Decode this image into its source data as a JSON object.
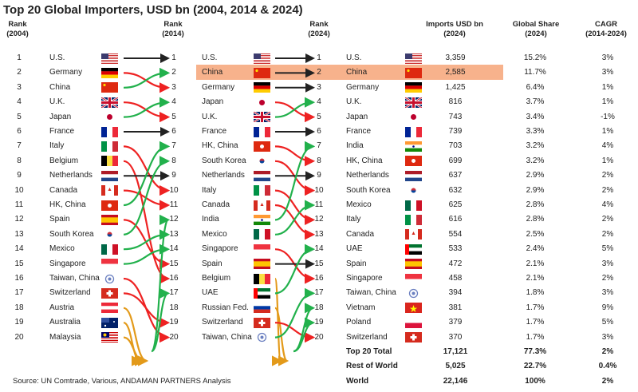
{
  "title": "Top 20 Global Importers, USD bn (2004, 2014 & 2024)",
  "headers": {
    "rank2004": [
      "Rank",
      "(2004)"
    ],
    "rank2014": [
      "Rank",
      "(2014)"
    ],
    "rank2024": [
      "Rank",
      "(2024)"
    ],
    "imports": [
      "Imports USD bn",
      "(2024)"
    ],
    "share": [
      "Global Share",
      "(2024)"
    ],
    "cagr": [
      "CAGR",
      "(2014-2024)"
    ]
  },
  "colors": {
    "same": "#222222",
    "up": "#22b14c",
    "down": "#ee2222",
    "out": "#e39a1a",
    "highlight": "#f7b28c"
  },
  "chart_data": {
    "type": "table",
    "title": "Top 20 Global Importers, USD bn (2004, 2014 & 2024)",
    "rank2004": [
      {
        "name": "U.S.",
        "flag": "us"
      },
      {
        "name": "Germany",
        "flag": "de"
      },
      {
        "name": "China",
        "flag": "cn"
      },
      {
        "name": "U.K.",
        "flag": "gb"
      },
      {
        "name": "Japan",
        "flag": "jp"
      },
      {
        "name": "France",
        "flag": "fr"
      },
      {
        "name": "Italy",
        "flag": "it"
      },
      {
        "name": "Belgium",
        "flag": "be"
      },
      {
        "name": "Netherlands",
        "flag": "nl"
      },
      {
        "name": "Canada",
        "flag": "ca"
      },
      {
        "name": "HK, China",
        "flag": "hk"
      },
      {
        "name": "Spain",
        "flag": "es"
      },
      {
        "name": "South Korea",
        "flag": "kr"
      },
      {
        "name": "Mexico",
        "flag": "mx"
      },
      {
        "name": "Singapore",
        "flag": "sg"
      },
      {
        "name": "Taiwan, China",
        "flag": "tw"
      },
      {
        "name": "Switzerland",
        "flag": "ch"
      },
      {
        "name": "Austria",
        "flag": "at"
      },
      {
        "name": "Australia",
        "flag": "au"
      },
      {
        "name": "Malaysia",
        "flag": "my"
      }
    ],
    "rank2014": [
      {
        "name": "U.S.",
        "flag": "us"
      },
      {
        "name": "China",
        "flag": "cn"
      },
      {
        "name": "Germany",
        "flag": "de"
      },
      {
        "name": "Japan",
        "flag": "jp"
      },
      {
        "name": "U.K.",
        "flag": "gb"
      },
      {
        "name": "France",
        "flag": "fr"
      },
      {
        "name": "HK, China",
        "flag": "hk"
      },
      {
        "name": "South Korea",
        "flag": "kr"
      },
      {
        "name": "Netherlands",
        "flag": "nl"
      },
      {
        "name": "Italy",
        "flag": "it"
      },
      {
        "name": "Canada",
        "flag": "ca"
      },
      {
        "name": "India",
        "flag": "in"
      },
      {
        "name": "Mexico",
        "flag": "mx"
      },
      {
        "name": "Singapore",
        "flag": "sg"
      },
      {
        "name": "Spain",
        "flag": "es"
      },
      {
        "name": "Belgium",
        "flag": "be"
      },
      {
        "name": "UAE",
        "flag": "ae"
      },
      {
        "name": "Russian Fed.",
        "flag": "ru"
      },
      {
        "name": "Switzerland",
        "flag": "ch"
      },
      {
        "name": "Taiwan, China",
        "flag": "tw"
      }
    ],
    "rank2024": [
      {
        "name": "U.S.",
        "flag": "us",
        "imports": "3,359",
        "share": "15.2%",
        "cagr": "3%"
      },
      {
        "name": "China",
        "flag": "cn",
        "imports": "2,585",
        "share": "11.7%",
        "cagr": "3%"
      },
      {
        "name": "Germany",
        "flag": "de",
        "imports": "1,425",
        "share": "6.4%",
        "cagr": "1%"
      },
      {
        "name": "U.K.",
        "flag": "gb",
        "imports": "816",
        "share": "3.7%",
        "cagr": "1%"
      },
      {
        "name": "Japan",
        "flag": "jp",
        "imports": "743",
        "share": "3.4%",
        "cagr": "-1%"
      },
      {
        "name": "France",
        "flag": "fr",
        "imports": "739",
        "share": "3.3%",
        "cagr": "1%"
      },
      {
        "name": "India",
        "flag": "in",
        "imports": "703",
        "share": "3.2%",
        "cagr": "4%"
      },
      {
        "name": "HK, China",
        "flag": "hk",
        "imports": "699",
        "share": "3.2%",
        "cagr": "1%"
      },
      {
        "name": "Netherlands",
        "flag": "nl",
        "imports": "637",
        "share": "2.9%",
        "cagr": "2%"
      },
      {
        "name": "South Korea",
        "flag": "kr",
        "imports": "632",
        "share": "2.9%",
        "cagr": "2%"
      },
      {
        "name": "Mexico",
        "flag": "mx",
        "imports": "625",
        "share": "2.8%",
        "cagr": "4%"
      },
      {
        "name": "Italy",
        "flag": "it",
        "imports": "616",
        "share": "2.8%",
        "cagr": "2%"
      },
      {
        "name": "Canada",
        "flag": "ca",
        "imports": "554",
        "share": "2.5%",
        "cagr": "2%"
      },
      {
        "name": "UAE",
        "flag": "ae",
        "imports": "533",
        "share": "2.4%",
        "cagr": "5%"
      },
      {
        "name": "Spain",
        "flag": "es",
        "imports": "472",
        "share": "2.1%",
        "cagr": "3%"
      },
      {
        "name": "Singapore",
        "flag": "sg",
        "imports": "458",
        "share": "2.1%",
        "cagr": "2%"
      },
      {
        "name": "Taiwan, China",
        "flag": "tw",
        "imports": "394",
        "share": "1.8%",
        "cagr": "3%"
      },
      {
        "name": "Vietnam",
        "flag": "vn",
        "imports": "381",
        "share": "1.7%",
        "cagr": "9%"
      },
      {
        "name": "Poland",
        "flag": "pl",
        "imports": "379",
        "share": "1.7%",
        "cagr": "5%"
      },
      {
        "name": "Switzerland",
        "flag": "ch",
        "imports": "370",
        "share": "1.7%",
        "cagr": "3%"
      }
    ],
    "totals": [
      {
        "label": "Top 20 Total",
        "imports": "17,121",
        "share": "77.3%",
        "cagr": "2%"
      },
      {
        "label": "Rest of World",
        "imports": "5,025",
        "share": "22.7%",
        "cagr": "0.4%"
      },
      {
        "label": "World",
        "imports": "22,146",
        "share": "100%",
        "cagr": "2%"
      }
    ],
    "moves_2004_2014": [
      1,
      3,
      2,
      5,
      4,
      6,
      10,
      16,
      9,
      11,
      7,
      15,
      8,
      13,
      14,
      20,
      19,
      null,
      null,
      null
    ],
    "moves_2014_2024": [
      1,
      2,
      3,
      5,
      4,
      6,
      8,
      10,
      9,
      12,
      13,
      7,
      11,
      16,
      15,
      null,
      14,
      null,
      20,
      17
    ],
    "new_2024": [
      18,
      19
    ],
    "highlight_rank2024": 2
  },
  "source": "Source: UN Comtrade, Various, ANDAMAN PARTNERS Analysis"
}
